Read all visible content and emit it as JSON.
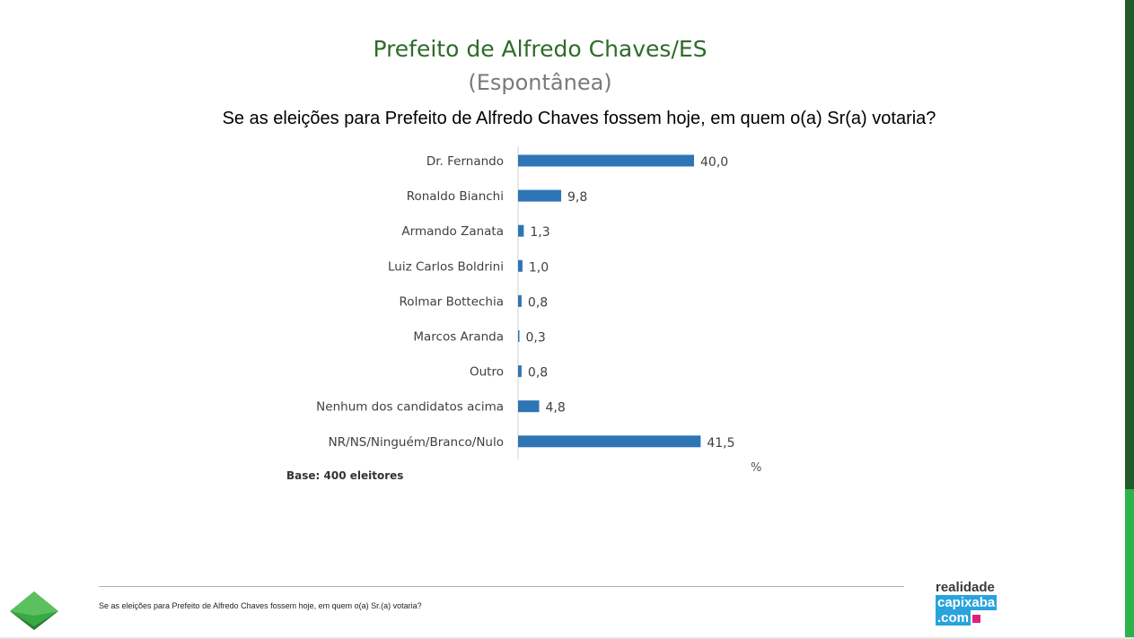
{
  "header": {
    "title": "Prefeito de Alfredo Chaves/ES",
    "subtitle": "(Espontânea)",
    "question": "Se as eleições para Prefeito de Alfredo Chaves fossem hoje, em quem o(a) Sr(a) votaria?"
  },
  "chart_data": {
    "type": "bar",
    "orientation": "horizontal",
    "categories": [
      "Dr. Fernando",
      "Ronaldo Bianchi",
      "Armando Zanata",
      "Luiz Carlos Boldrini",
      "Rolmar Bottechia",
      "Marcos Aranda",
      "Outro",
      "Nenhum dos candidatos acima",
      "NR/NS/Ninguém/Branco/Nulo"
    ],
    "values": [
      40.0,
      9.8,
      1.3,
      1.0,
      0.8,
      0.3,
      0.8,
      4.8,
      41.5
    ],
    "value_labels": [
      "40,0",
      "9,8",
      "1,3",
      "1,0",
      "0,8",
      "0,3",
      "0,8",
      "4,8",
      "41,5"
    ],
    "unit_label": "%",
    "bar_color": "#2e75b6",
    "xlim": [
      0,
      55
    ],
    "grid": false
  },
  "base_note": "Base: 400 eleitores",
  "footer": {
    "text": "Se as eleições para Prefeito de Alfredo Chaves fossem hoje, em quem o(a) Sr.(a) votaria?"
  },
  "brand": {
    "line1": "realidade",
    "line2": "capixaba",
    "line3": ".com"
  },
  "colors": {
    "title_green": "#2e6b2a",
    "side_dark_green": "#1f5a28",
    "side_light_green": "#2db34a",
    "brand_blue": "#29a3dd",
    "brand_pink": "#e2207a"
  }
}
